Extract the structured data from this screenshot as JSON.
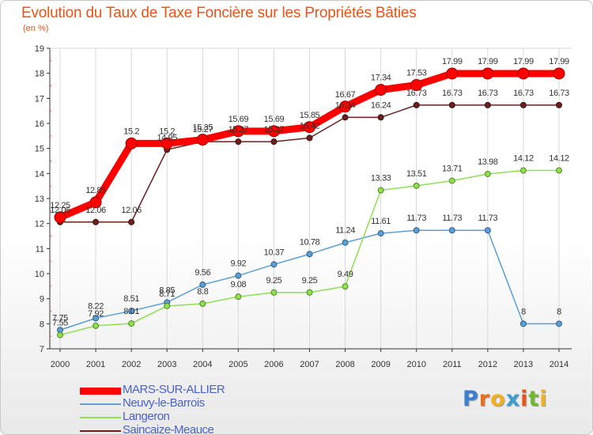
{
  "colors": {
    "title": "#e8541a",
    "axis": "#333333",
    "grid": "#d8d8d8",
    "legend_text": "#4a63c8"
  },
  "chart_data": {
    "type": "line",
    "title": "Evolution du Taux de Taxe Foncière sur les Propriétés Bâties",
    "subtitle": "(en %)",
    "xlabel": "",
    "ylabel": "",
    "categories": [
      "2000",
      "2001",
      "2002",
      "2003",
      "2004",
      "2005",
      "2006",
      "2007",
      "2008",
      "2009",
      "2010",
      "2011",
      "2012",
      "2013",
      "2014"
    ],
    "ylim": [
      7,
      19
    ],
    "yticks": [
      7,
      8,
      9,
      10,
      11,
      12,
      13,
      14,
      15,
      16,
      17,
      18,
      19
    ],
    "grid": "vertical",
    "legend_position": "bottom-left",
    "series": [
      {
        "name": "MARS-SUR-ALLIER",
        "color": "#ff0000",
        "values": [
          12.25,
          12.85,
          15.2,
          15.2,
          15.35,
          15.69,
          15.69,
          15.85,
          16.67,
          17.34,
          17.53,
          17.99,
          17.99,
          17.99,
          17.99
        ],
        "labels": [
          "12.25",
          "12.85",
          "15.2",
          "15.2",
          "15.35",
          "15.69",
          "15.69",
          "15.85",
          "16.67",
          "17.34",
          "17.53",
          "17.99",
          "17.99",
          "17.99",
          "17.99"
        ]
      },
      {
        "name": "Neuvy-le-Barrois",
        "color": "#5b9fd6",
        "values": [
          7.75,
          8.22,
          8.51,
          8.85,
          9.56,
          9.92,
          10.37,
          10.78,
          11.24,
          11.61,
          11.73,
          11.73,
          11.73,
          8,
          8
        ],
        "labels": [
          "7.75",
          "8.22",
          "8.51",
          "8.85",
          "9.56",
          "9.92",
          "10.37",
          "10.78",
          "11.24",
          "11.61",
          "11.73",
          "11.73",
          "11.73",
          "8",
          "8"
        ]
      },
      {
        "name": "Langeron",
        "color": "#8fe050",
        "values": [
          7.55,
          7.92,
          8.01,
          8.71,
          8.8,
          9.08,
          9.25,
          9.25,
          9.49,
          13.33,
          13.51,
          13.71,
          13.98,
          14.12,
          14.12
        ],
        "labels": [
          "7.55",
          "7.92",
          "8.01",
          "8.71",
          "8.8",
          "9.08",
          "9.25",
          "9.25",
          "9.49",
          "13.33",
          "13.51",
          "13.71",
          "13.98",
          "14.12",
          "14.12"
        ]
      },
      {
        "name": "Saincaize-Meauce",
        "color": "#6b2020",
        "values": [
          12.06,
          12.06,
          12.06,
          14.95,
          15.27,
          15.27,
          15.27,
          15.42,
          16.24,
          16.24,
          16.73,
          16.73,
          16.73,
          16.73,
          16.73
        ],
        "labels": [
          "12.06",
          "12.06",
          "12.06",
          "14.95",
          "15.27",
          "15.27",
          "15.27",
          "15.42",
          "16.24",
          "16.24",
          "16.73",
          "16.73",
          "16.73",
          "16.73",
          "16.73"
        ]
      }
    ]
  },
  "logo": {
    "letters": [
      "P",
      "r",
      "o",
      "x",
      "i",
      "t",
      "i"
    ],
    "colors": [
      "#3a7fd0",
      "#e8701a",
      "#f0b020",
      "#3a9fd0",
      "#e8541a",
      "#70b830",
      "#f0b020"
    ]
  }
}
